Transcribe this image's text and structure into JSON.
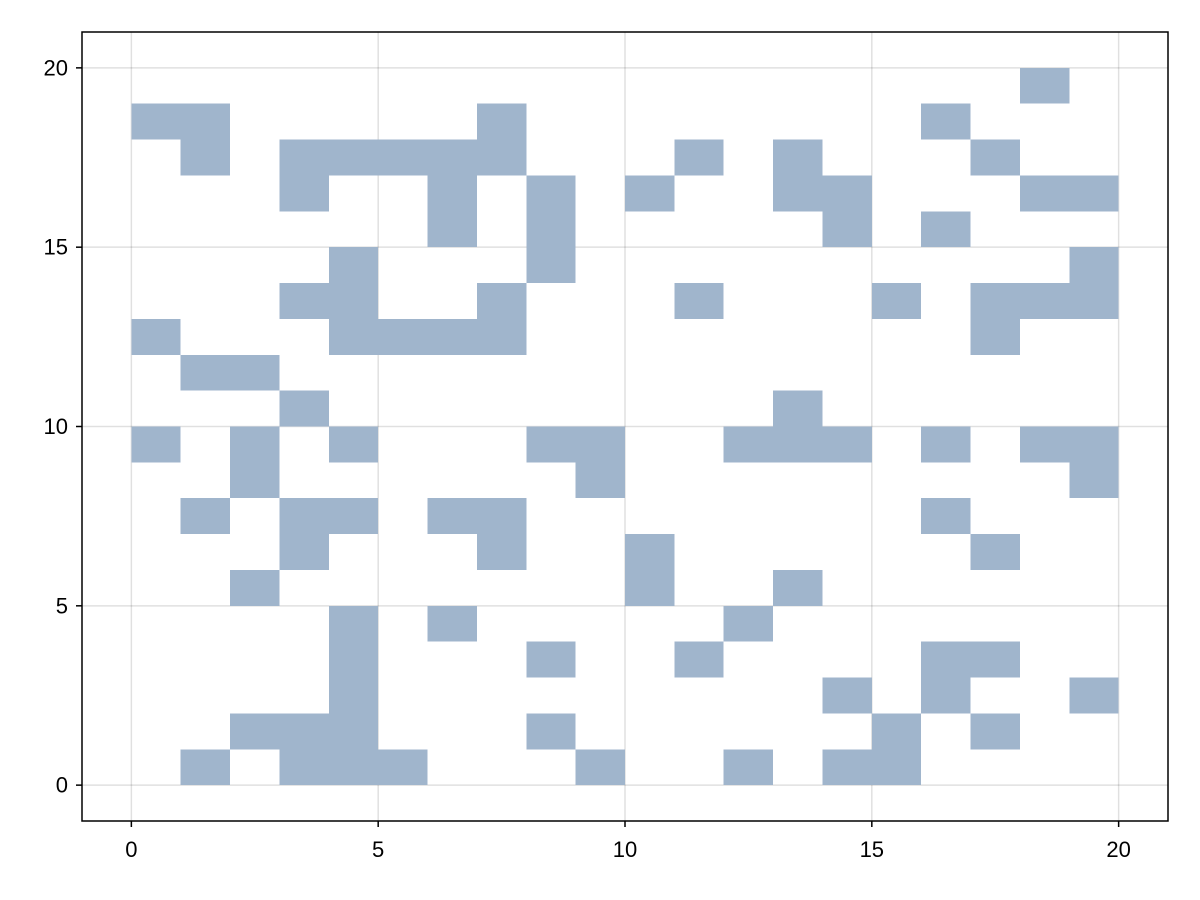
{
  "chart_data": {
    "type": "heatmap",
    "title": "",
    "xlabel": "",
    "ylabel": "",
    "xlim": [
      -1,
      21
    ],
    "ylim": [
      -1,
      21
    ],
    "x_ticks": [
      0,
      5,
      10,
      15,
      20
    ],
    "y_ticks": [
      0,
      5,
      10,
      15,
      20
    ],
    "x_tick_labels": [
      "0",
      "5",
      "10",
      "15",
      "20"
    ],
    "y_tick_labels": [
      "0",
      "5",
      "10",
      "15",
      "20"
    ],
    "grid": true,
    "cell_color": "#a0b5cc",
    "cells": [
      [
        18,
        20
      ],
      [
        0,
        19
      ],
      [
        1,
        19
      ],
      [
        7,
        19
      ],
      [
        16,
        19
      ],
      [
        1,
        18
      ],
      [
        3,
        18
      ],
      [
        4,
        18
      ],
      [
        5,
        18
      ],
      [
        6,
        18
      ],
      [
        7,
        18
      ],
      [
        11,
        18
      ],
      [
        13,
        18
      ],
      [
        17,
        18
      ],
      [
        3,
        17
      ],
      [
        6,
        17
      ],
      [
        8,
        17
      ],
      [
        10,
        17
      ],
      [
        13,
        17
      ],
      [
        14,
        17
      ],
      [
        18,
        17
      ],
      [
        19,
        17
      ],
      [
        6,
        16
      ],
      [
        8,
        16
      ],
      [
        14,
        16
      ],
      [
        16,
        16
      ],
      [
        4,
        15
      ],
      [
        8,
        15
      ],
      [
        19,
        15
      ],
      [
        3,
        14
      ],
      [
        4,
        14
      ],
      [
        7,
        14
      ],
      [
        11,
        14
      ],
      [
        15,
        14
      ],
      [
        17,
        14
      ],
      [
        18,
        14
      ],
      [
        19,
        14
      ],
      [
        0,
        13
      ],
      [
        4,
        13
      ],
      [
        5,
        13
      ],
      [
        6,
        13
      ],
      [
        7,
        13
      ],
      [
        17,
        13
      ],
      [
        1,
        12
      ],
      [
        2,
        12
      ],
      [
        3,
        11
      ],
      [
        13,
        11
      ],
      [
        0,
        10
      ],
      [
        2,
        10
      ],
      [
        4,
        10
      ],
      [
        8,
        10
      ],
      [
        9,
        10
      ],
      [
        12,
        10
      ],
      [
        13,
        10
      ],
      [
        14,
        10
      ],
      [
        16,
        10
      ],
      [
        18,
        10
      ],
      [
        19,
        10
      ],
      [
        2,
        9
      ],
      [
        9,
        9
      ],
      [
        19,
        9
      ],
      [
        1,
        8
      ],
      [
        3,
        8
      ],
      [
        4,
        8
      ],
      [
        6,
        8
      ],
      [
        7,
        8
      ],
      [
        16,
        8
      ],
      [
        3,
        7
      ],
      [
        7,
        7
      ],
      [
        10,
        7
      ],
      [
        17,
        7
      ],
      [
        2,
        6
      ],
      [
        10,
        6
      ],
      [
        13,
        6
      ],
      [
        4,
        5
      ],
      [
        6,
        5
      ],
      [
        12,
        5
      ],
      [
        4,
        4
      ],
      [
        8,
        4
      ],
      [
        11,
        4
      ],
      [
        16,
        4
      ],
      [
        17,
        4
      ],
      [
        4,
        3
      ],
      [
        14,
        3
      ],
      [
        16,
        3
      ],
      [
        19,
        3
      ],
      [
        2,
        2
      ],
      [
        3,
        2
      ],
      [
        4,
        2
      ],
      [
        8,
        2
      ],
      [
        15,
        2
      ],
      [
        17,
        2
      ],
      [
        1,
        1
      ],
      [
        3,
        1
      ],
      [
        4,
        1
      ],
      [
        5,
        1
      ],
      [
        9,
        1
      ],
      [
        12,
        1
      ],
      [
        14,
        1
      ],
      [
        15,
        1
      ]
    ]
  }
}
